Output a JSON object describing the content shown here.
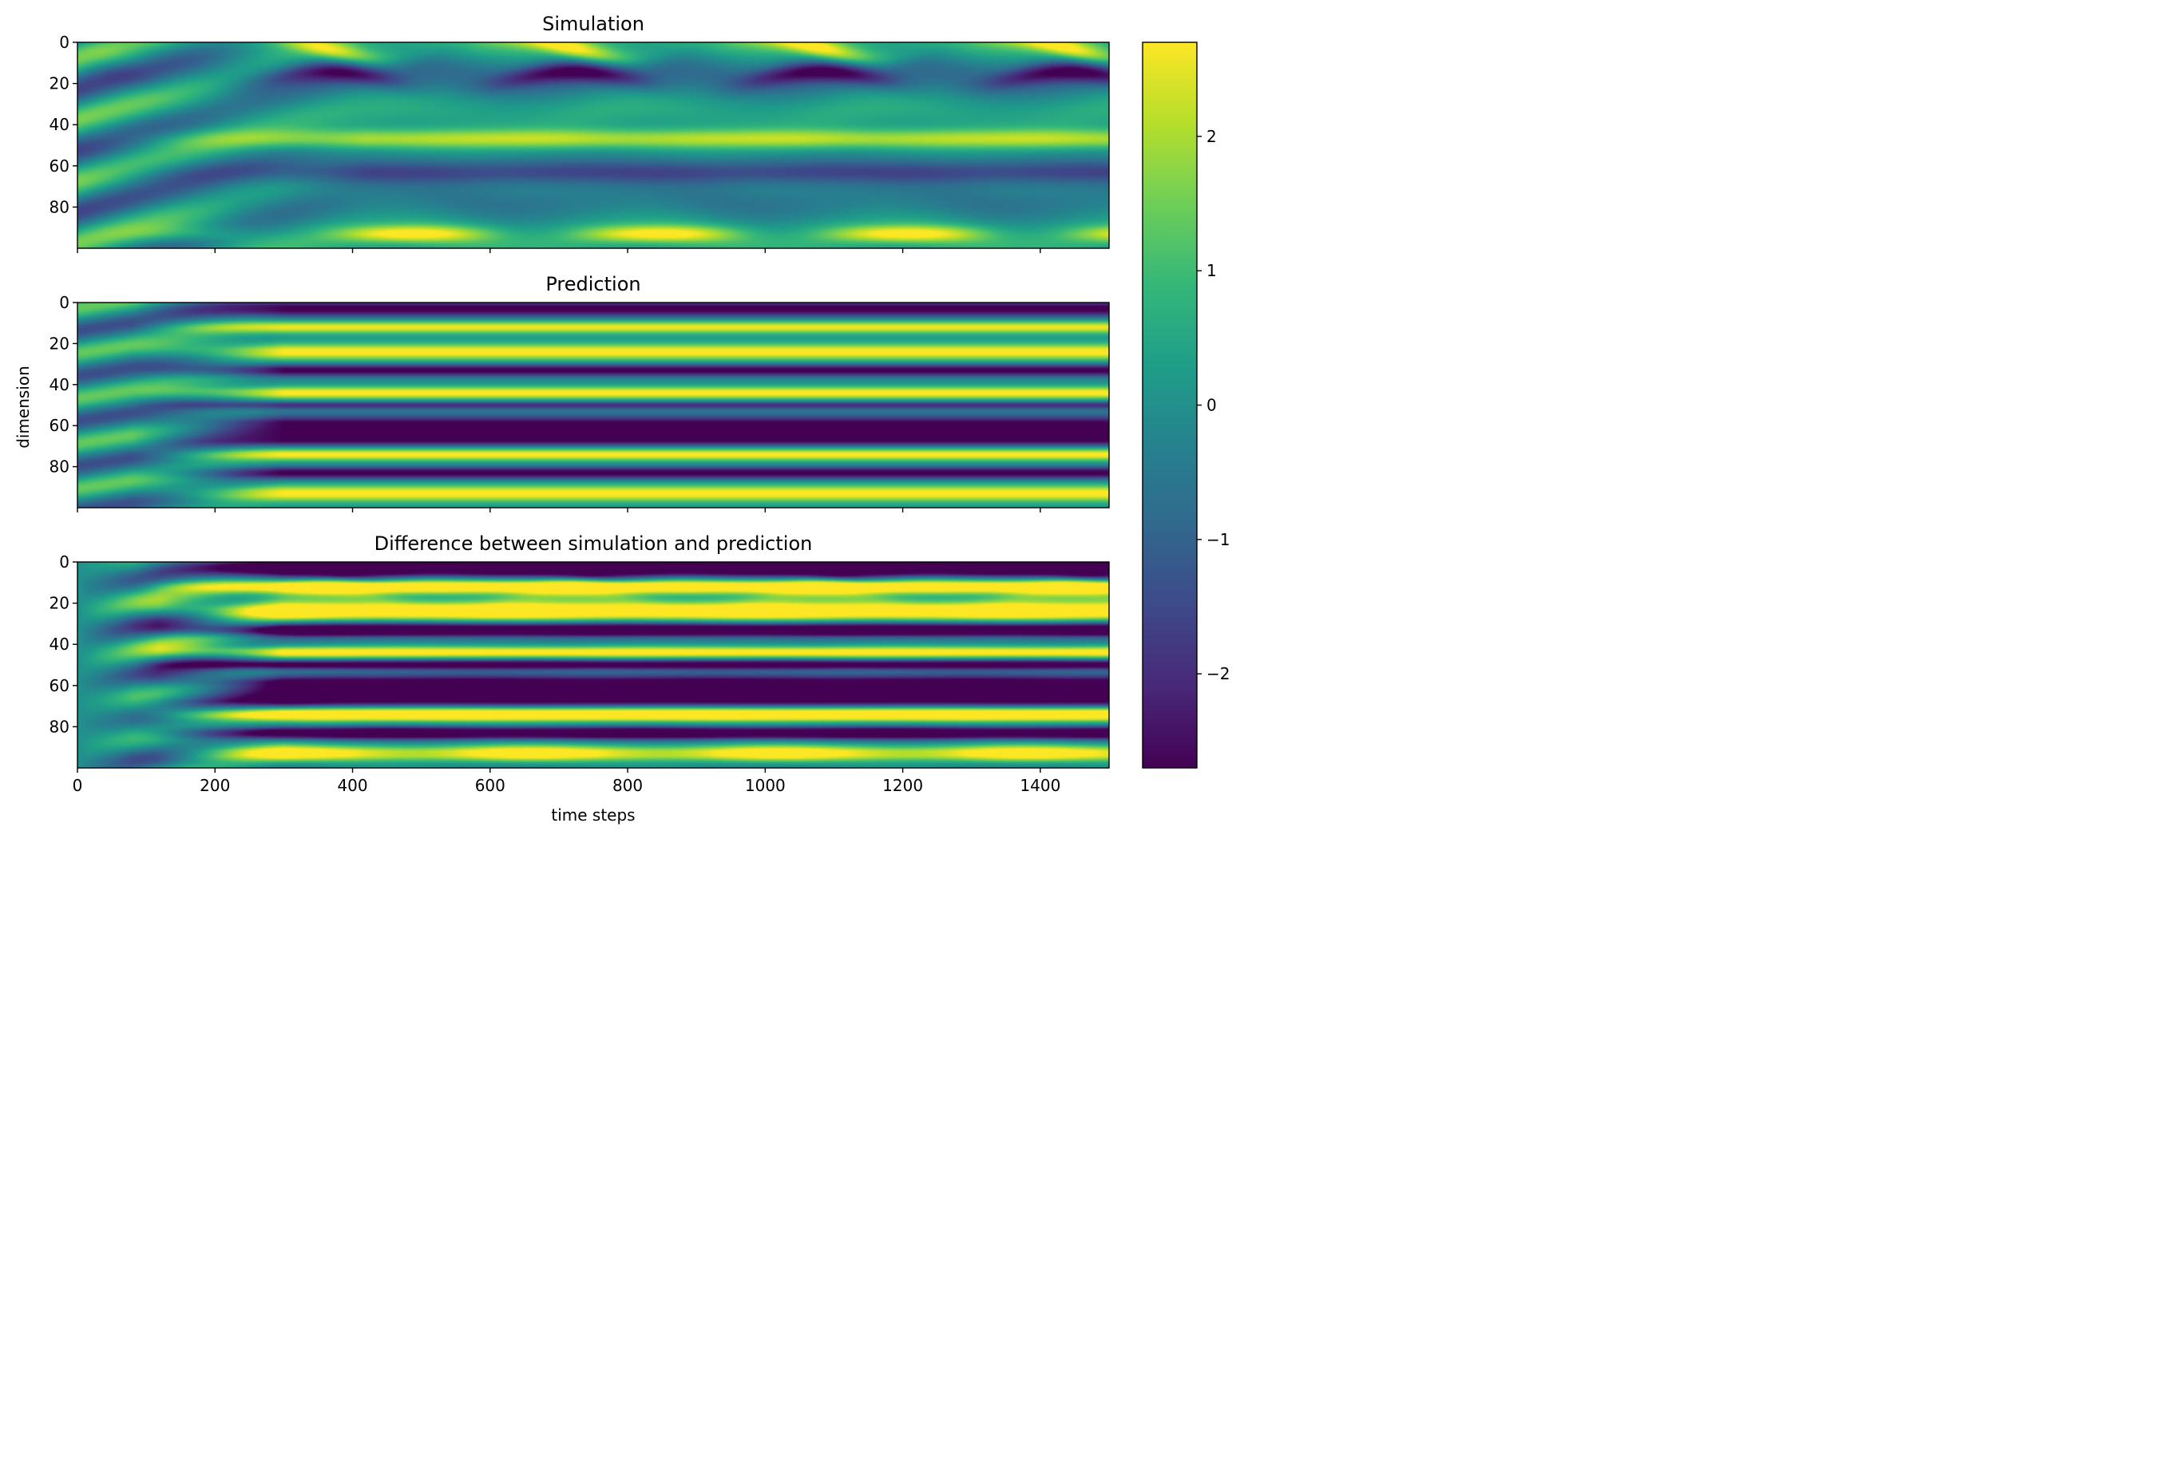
{
  "chart_data": [
    {
      "type": "heatmap",
      "title": "Simulation",
      "field": "simulation",
      "xlim": [
        0,
        1500
      ],
      "ylim": [
        100,
        0
      ],
      "xticks": [
        0,
        200,
        400,
        600,
        800,
        1000,
        1200,
        1400
      ],
      "yticks": [
        0,
        20,
        40,
        60,
        80
      ],
      "xtick_labels_visible": false,
      "ylabel": "",
      "xlabel": ""
    },
    {
      "type": "heatmap",
      "title": "Prediction",
      "field": "prediction",
      "xlim": [
        0,
        1500
      ],
      "ylim": [
        100,
        0
      ],
      "xticks": [
        0,
        200,
        400,
        600,
        800,
        1000,
        1200,
        1400
      ],
      "yticks": [
        0,
        20,
        40,
        60,
        80
      ],
      "xtick_labels_visible": false,
      "ylabel": "dimension",
      "xlabel": ""
    },
    {
      "type": "heatmap",
      "title": "Difference between simulation and prediction",
      "field": "difference",
      "xlim": [
        0,
        1500
      ],
      "ylim": [
        100,
        0
      ],
      "xticks": [
        0,
        200,
        400,
        600,
        800,
        1000,
        1200,
        1400
      ],
      "yticks": [
        0,
        20,
        40,
        60,
        80
      ],
      "xtick_labels_visible": true,
      "ylabel": "",
      "xlabel": "time steps"
    }
  ],
  "colorbar": {
    "colormap": "viridis",
    "range": [
      -2.7,
      2.7
    ],
    "ticks": [
      2,
      1,
      0,
      -1,
      -2
    ],
    "tick_labels": [
      "2",
      "1",
      "0",
      "−1",
      "−2"
    ]
  },
  "colors": {
    "viridis": [
      "#440154",
      "#482878",
      "#3e4989",
      "#31688e",
      "#26828e",
      "#1f9e89",
      "#35b779",
      "#6ece58",
      "#b5de2b",
      "#fde725"
    ]
  }
}
